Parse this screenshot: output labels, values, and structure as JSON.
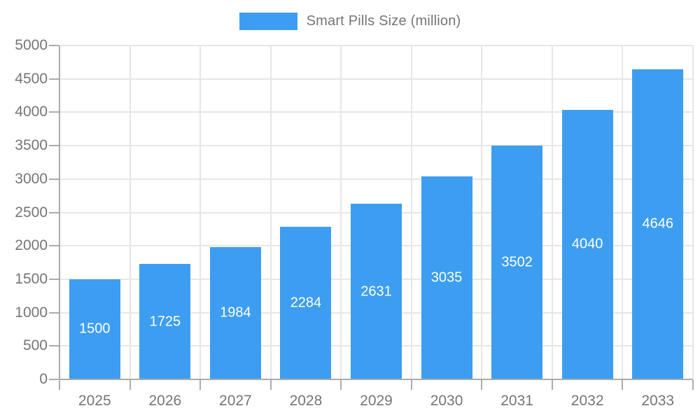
{
  "legend": {
    "series_label": "Smart Pills Size (million)"
  },
  "colors": {
    "bar": "#3d9ef1",
    "bar_label_text": "#ffffff",
    "axis_text": "#757575",
    "grid_line": "#e6e6e6",
    "axis_line": "#ababab",
    "background": "#ffffff"
  },
  "chart_data": {
    "type": "bar",
    "title": "Smart Pills Size (million)",
    "categories": [
      "2025",
      "2026",
      "2027",
      "2028",
      "2029",
      "2030",
      "2031",
      "2032",
      "2033"
    ],
    "series": [
      {
        "name": "Smart Pills Size (million)",
        "color": "#3d9ef1",
        "values": [
          1500,
          1725,
          1984,
          2284,
          2631,
          3035,
          3502,
          4040,
          4646
        ]
      }
    ],
    "xlabel": "",
    "ylabel": "",
    "ylim": [
      0,
      5000
    ],
    "ytick_interval": 500,
    "ytick_labels": [
      "0",
      "500",
      "1000",
      "1500",
      "2000",
      "2500",
      "3000",
      "3500",
      "4000",
      "4500",
      "5000"
    ],
    "grid": true,
    "legend_position": "top",
    "value_labels": "inside-center"
  }
}
